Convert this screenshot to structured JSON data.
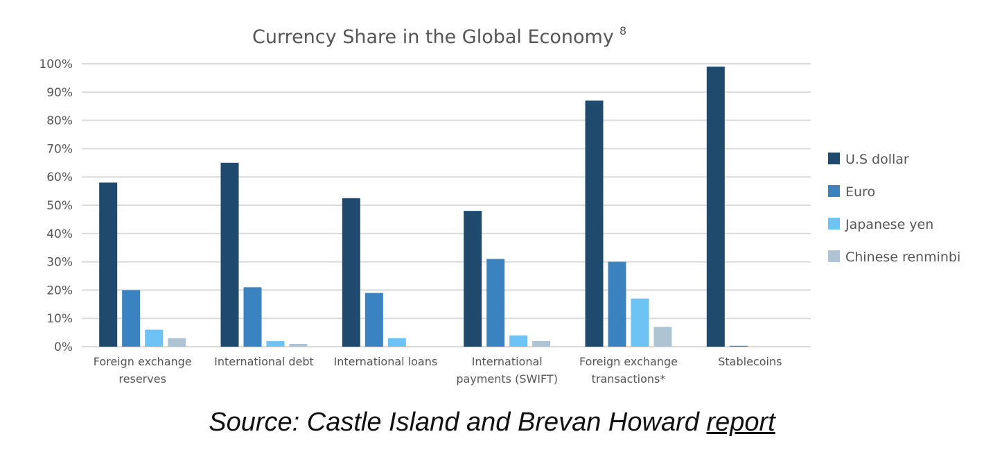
{
  "chart_data": {
    "type": "bar",
    "title": "Currency Share in the Global Economy",
    "title_superscript": "8",
    "categories": [
      [
        "Foreign exchange",
        "reserves"
      ],
      [
        "International debt"
      ],
      [
        "International loans"
      ],
      [
        "International",
        "payments (SWIFT)"
      ],
      [
        "Foreign exchange",
        "transactions*"
      ],
      [
        "Stablecoins"
      ]
    ],
    "series": [
      {
        "name": "U.S dollar",
        "color": "#1f4a6e",
        "values": [
          58,
          65,
          52.5,
          48,
          87,
          99
        ]
      },
      {
        "name": "Euro",
        "color": "#3a82c0",
        "values": [
          20,
          21,
          19,
          31,
          30,
          0.3
        ]
      },
      {
        "name": "Japanese yen",
        "color": "#6ec3f5",
        "values": [
          6,
          2,
          3,
          4,
          17,
          null
        ]
      },
      {
        "name": "Chinese renminbi",
        "color": "#aec4d2",
        "values": [
          3,
          1,
          null,
          2,
          7,
          null
        ]
      }
    ],
    "yticks": [
      "0%",
      "10%",
      "20%",
      "30%",
      "40%",
      "50%",
      "60%",
      "70%",
      "80%",
      "90%",
      "100%"
    ],
    "ylim": [
      0,
      100
    ],
    "grid": true,
    "legend": "right"
  },
  "source": {
    "text": "Source: Castle Island and Brevan Howard",
    "link_text": "report"
  }
}
